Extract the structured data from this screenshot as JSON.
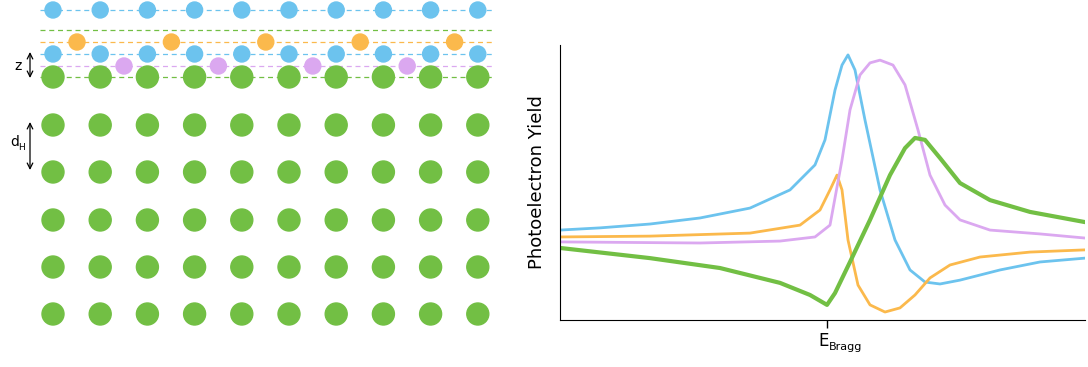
{
  "diagram": {
    "labels": [
      {
        "text": "z"
      },
      {
        "text": "d",
        "subscript": "H"
      }
    ]
  },
  "chart_data": {
    "type": "line",
    "ylabel": "Photoelectron Yield",
    "xlabel": "E",
    "xlabel_subscript": "Bragg",
    "xlim": [
      -2.67,
      2.58
    ],
    "ylim": [
      0,
      1
    ],
    "xticks": [
      0
    ],
    "yticks": [],
    "tick_labels": false,
    "grid": false,
    "series": [
      {
        "color": "#6cc3ee",
        "x": [
          -2.67,
          -2.27,
          -1.77,
          -1.27,
          -0.77,
          -0.37,
          -0.12,
          -0.02,
          0.08,
          0.15,
          0.21,
          0.28,
          0.38,
          0.53,
          0.68,
          0.83,
          0.98,
          1.13,
          1.33,
          1.73,
          2.13,
          2.58
        ],
        "values": [
          0.327,
          0.335,
          0.349,
          0.371,
          0.407,
          0.473,
          0.564,
          0.655,
          0.836,
          0.927,
          0.964,
          0.909,
          0.727,
          0.473,
          0.291,
          0.182,
          0.138,
          0.131,
          0.145,
          0.182,
          0.211,
          0.225
        ]
      },
      {
        "color": "#fbb94c",
        "x": [
          -2.67,
          -1.77,
          -0.77,
          -0.27,
          -0.07,
          0.03,
          0.1,
          0.15,
          0.21,
          0.31,
          0.43,
          0.58,
          0.73,
          0.88,
          1.03,
          1.23,
          1.53,
          2.03,
          2.58
        ],
        "values": [
          0.302,
          0.305,
          0.316,
          0.345,
          0.4,
          0.473,
          0.527,
          0.473,
          0.291,
          0.127,
          0.055,
          0.029,
          0.044,
          0.091,
          0.153,
          0.2,
          0.229,
          0.247,
          0.255
        ]
      },
      {
        "color": "#dba8f0",
        "x": [
          -2.67,
          -1.27,
          -0.47,
          -0.12,
          0.03,
          0.15,
          0.23,
          0.33,
          0.43,
          0.53,
          0.66,
          0.78,
          0.91,
          1.03,
          1.18,
          1.33,
          1.63,
          2.13,
          2.58
        ],
        "values": [
          0.284,
          0.28,
          0.287,
          0.302,
          0.345,
          0.582,
          0.764,
          0.891,
          0.935,
          0.945,
          0.927,
          0.855,
          0.691,
          0.527,
          0.418,
          0.364,
          0.327,
          0.313,
          0.298
        ]
      },
      {
        "color": "#72bf44",
        "x": [
          -2.67,
          -1.77,
          -1.07,
          -0.47,
          -0.17,
          0.0,
          0.08,
          0.23,
          0.43,
          0.63,
          0.78,
          0.88,
          0.98,
          1.13,
          1.33,
          1.63,
          2.03,
          2.58
        ],
        "values": [
          0.262,
          0.225,
          0.189,
          0.135,
          0.091,
          0.055,
          0.098,
          0.211,
          0.364,
          0.527,
          0.625,
          0.662,
          0.655,
          0.589,
          0.498,
          0.436,
          0.393,
          0.356
        ]
      }
    ]
  }
}
